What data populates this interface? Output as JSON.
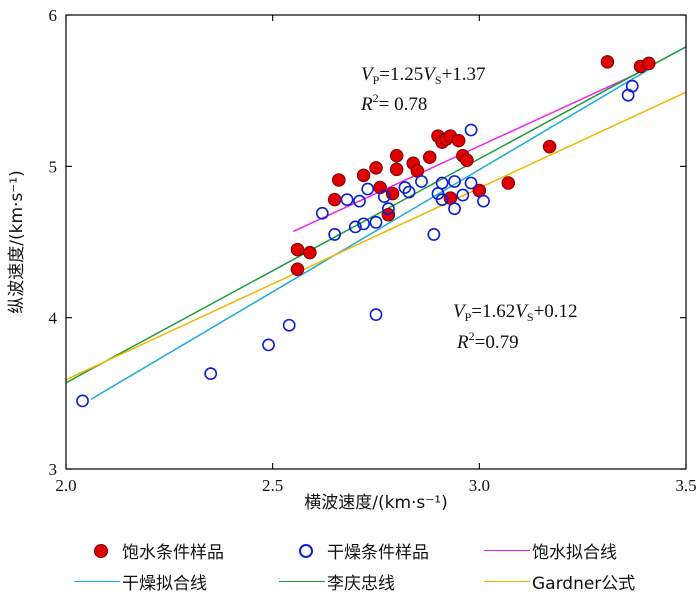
{
  "chart_data": {
    "type": "scatter",
    "xlabel": "横波速度/(km·s⁻¹)",
    "ylabel": "纵波速度/(km·s⁻¹)",
    "xlim": [
      2.0,
      3.5
    ],
    "ylim": [
      3,
      6
    ],
    "xticks": [
      "2.0",
      "2.5",
      "3.0",
      "3.5"
    ],
    "yticks": [
      "3",
      "4",
      "5",
      "6"
    ],
    "grid": false,
    "colors": {
      "saturated": "#e00000",
      "dry": "#0a1fd6",
      "fit_saturated": "#ee22ee",
      "fit_dry": "#18aadf",
      "li_qingzhong": "#1a9a3a",
      "gardner": "#f4b400"
    },
    "series": [
      {
        "name": "饱水条件样品",
        "kind": "points",
        "x": [
          2.56,
          2.56,
          2.59,
          2.65,
          2.66,
          2.72,
          2.75,
          2.76,
          2.78,
          2.79,
          2.8,
          2.8,
          2.84,
          2.85,
          2.88,
          2.9,
          2.91,
          2.92,
          2.93,
          2.95,
          2.96,
          2.97,
          2.93,
          3.0,
          3.07,
          3.17,
          3.31,
          3.39,
          3.41
        ],
        "y": [
          4.32,
          4.45,
          4.43,
          4.78,
          4.91,
          4.94,
          4.99,
          4.86,
          4.68,
          4.82,
          4.98,
          5.07,
          5.02,
          4.97,
          5.06,
          5.2,
          5.16,
          5.18,
          5.2,
          5.17,
          5.07,
          5.04,
          4.79,
          4.84,
          4.89,
          5.13,
          5.69,
          5.66,
          5.68
        ]
      },
      {
        "name": "干燥条件样品",
        "kind": "points",
        "x": [
          2.04,
          2.35,
          2.49,
          2.54,
          2.62,
          2.65,
          2.68,
          2.7,
          2.71,
          2.72,
          2.73,
          2.75,
          2.75,
          2.77,
          2.78,
          2.82,
          2.83,
          2.86,
          2.89,
          2.9,
          2.91,
          2.91,
          2.94,
          2.94,
          2.96,
          2.98,
          2.98,
          3.01,
          3.36,
          3.37
        ],
        "y": [
          3.45,
          3.63,
          3.82,
          3.95,
          4.69,
          4.55,
          4.78,
          4.6,
          4.77,
          4.62,
          4.85,
          4.63,
          4.02,
          4.8,
          4.72,
          4.86,
          4.83,
          4.9,
          4.55,
          4.82,
          4.89,
          4.78,
          4.72,
          4.9,
          4.81,
          4.89,
          5.24,
          4.77,
          5.47,
          5.53
        ]
      },
      {
        "name": "饱水拟合线",
        "kind": "line",
        "x": [
          2.55,
          3.38
        ],
        "y": [
          4.57,
          5.61
        ]
      },
      {
        "name": "干燥拟合线",
        "kind": "line",
        "x": [
          2.06,
          3.41
        ],
        "y": [
          3.46,
          5.64
        ]
      },
      {
        "name": "李庆忠线",
        "kind": "line",
        "x": [
          2.0,
          3.5
        ],
        "y": [
          3.57,
          5.79
        ]
      },
      {
        "name": "Gardner公式",
        "kind": "line",
        "x": [
          2.0,
          3.5
        ],
        "y": [
          3.59,
          5.49
        ]
      }
    ],
    "annotations": {
      "saturated_eq": {
        "vp": "V",
        "vp_sub": "P",
        "mid": "=1.25",
        "vs": "V",
        "vs_sub": "S",
        "tail": "+1.37",
        "r2": "R",
        "r2_sup": "2",
        "r2_val": "= 0.78"
      },
      "dry_eq": {
        "vp": "V",
        "vp_sub": "P",
        "mid": "=1.62",
        "vs": "V",
        "vs_sub": "S",
        "tail": "+0.12",
        "r2": "R",
        "r2_sup": "2",
        "r2_val": "=0.79"
      }
    }
  },
  "legend": [
    {
      "label": "饱水条件样品"
    },
    {
      "label": "干燥条件样品"
    },
    {
      "label": "饱水拟合线"
    },
    {
      "label": "干燥拟合线"
    },
    {
      "label": "李庆忠线"
    },
    {
      "label": "Gardner公式"
    }
  ]
}
